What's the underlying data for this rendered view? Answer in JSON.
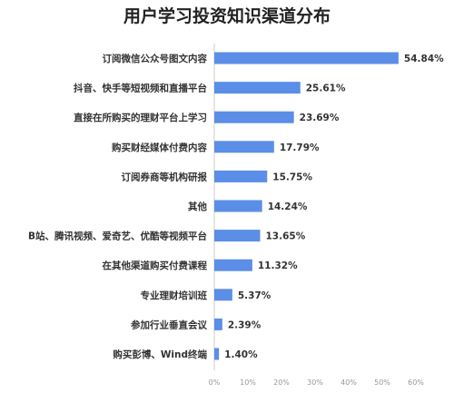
{
  "chart_data": {
    "type": "bar",
    "orientation": "horizontal",
    "title": "用户学习投资知识渠道分布",
    "xlabel": "",
    "ylabel": "",
    "xlim": [
      0,
      60
    ],
    "x_ticks": [
      "0%",
      "10%",
      "20%",
      "30%",
      "40%",
      "50%",
      "60%"
    ],
    "grid": false,
    "bar_color": "#5b8ee6",
    "categories": [
      "订阅微信公众号图文内容",
      "抖音、快手等短视频和直播平台",
      "直接在所购买的理财平台上学习",
      "购买财经媒体付费内容",
      "订阅券商等机构研报",
      "其他",
      "B站、腾讯视频、爱奇艺、优酷等视频平台",
      "在其他渠道购买付费课程",
      "专业理财培训班",
      "参加行业垂直会议",
      "购买彭博、Wind终端"
    ],
    "values": [
      54.84,
      25.61,
      23.69,
      17.79,
      15.75,
      14.24,
      13.65,
      11.32,
      5.37,
      2.39,
      1.4
    ],
    "value_labels": [
      "54.84%",
      "25.61%",
      "23.69%",
      "17.79%",
      "15.75%",
      "14.24%",
      "13.65%",
      "11.32%",
      "5.37%",
      "2.39%",
      "1.40%"
    ]
  }
}
